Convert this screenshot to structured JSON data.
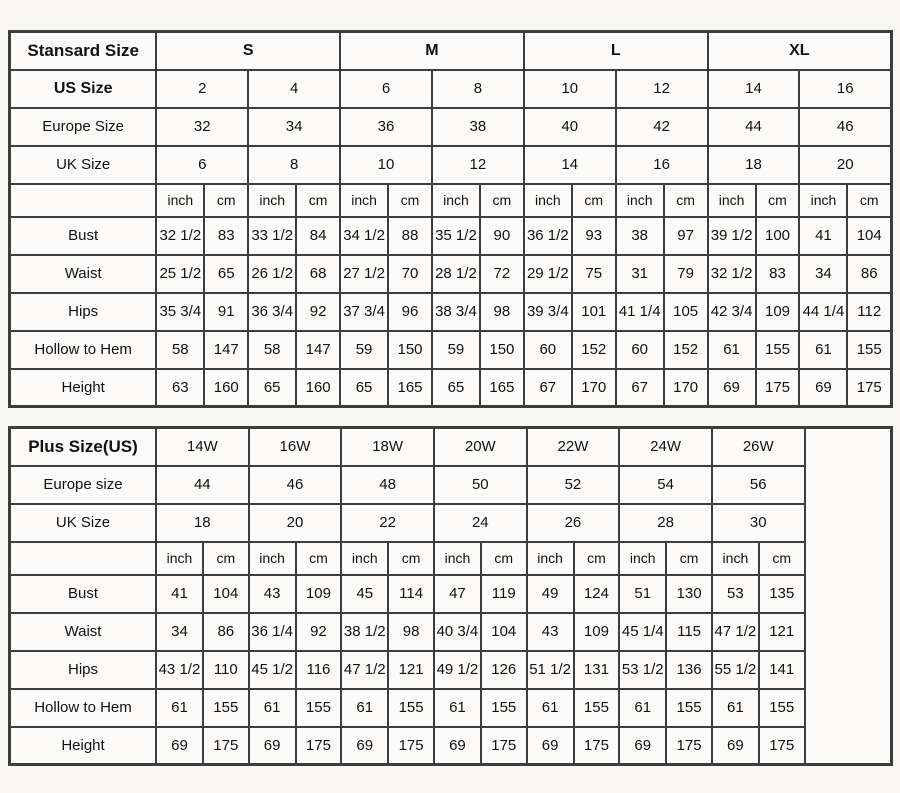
{
  "standard_table": {
    "corner_label": "Stansard Size",
    "groups": [
      "S",
      "M",
      "L",
      "XL"
    ],
    "size_rows": [
      {
        "label": "US Size",
        "bold": true,
        "values": [
          "2",
          "4",
          "6",
          "8",
          "10",
          "12",
          "14",
          "16"
        ]
      },
      {
        "label": "Europe Size",
        "bold": false,
        "values": [
          "32",
          "34",
          "36",
          "38",
          "40",
          "42",
          "44",
          "46"
        ]
      },
      {
        "label": "UK Size",
        "bold": false,
        "values": [
          "6",
          "8",
          "10",
          "12",
          "14",
          "16",
          "18",
          "20"
        ]
      }
    ],
    "units": [
      "inch",
      "cm"
    ],
    "measure_rows": [
      {
        "label": "Bust",
        "values": [
          "32 1/2",
          "83",
          "33 1/2",
          "84",
          "34 1/2",
          "88",
          "35 1/2",
          "90",
          "36 1/2",
          "93",
          "38",
          "97",
          "39 1/2",
          "100",
          "41",
          "104"
        ]
      },
      {
        "label": "Waist",
        "values": [
          "25 1/2",
          "65",
          "26 1/2",
          "68",
          "27 1/2",
          "70",
          "28 1/2",
          "72",
          "29 1/2",
          "75",
          "31",
          "79",
          "32 1/2",
          "83",
          "34",
          "86"
        ]
      },
      {
        "label": "Hips",
        "values": [
          "35 3/4",
          "91",
          "36 3/4",
          "92",
          "37 3/4",
          "96",
          "38 3/4",
          "98",
          "39 3/4",
          "101",
          "41 1/4",
          "105",
          "42 3/4",
          "109",
          "44 1/4",
          "112"
        ]
      },
      {
        "label": "Hollow to Hem",
        "values": [
          "58",
          "147",
          "58",
          "147",
          "59",
          "150",
          "59",
          "150",
          "60",
          "152",
          "60",
          "152",
          "61",
          "155",
          "61",
          "155"
        ]
      },
      {
        "label": "Height",
        "values": [
          "63",
          "160",
          "65",
          "160",
          "65",
          "165",
          "65",
          "165",
          "67",
          "170",
          "67",
          "170",
          "69",
          "175",
          "69",
          "175"
        ]
      }
    ]
  },
  "plus_table": {
    "corner_label": "Plus Size(US)",
    "sizes": [
      "14W",
      "16W",
      "18W",
      "20W",
      "22W",
      "24W",
      "26W"
    ],
    "size_rows": [
      {
        "label": "Europe size",
        "bold": false,
        "values": [
          "44",
          "46",
          "48",
          "50",
          "52",
          "54",
          "56"
        ]
      },
      {
        "label": "UK Size",
        "bold": false,
        "values": [
          "18",
          "20",
          "22",
          "24",
          "26",
          "28",
          "30"
        ]
      }
    ],
    "units": [
      "inch",
      "cm"
    ],
    "measure_rows": [
      {
        "label": "Bust",
        "values": [
          "41",
          "104",
          "43",
          "109",
          "45",
          "114",
          "47",
          "119",
          "49",
          "124",
          "51",
          "130",
          "53",
          "135"
        ]
      },
      {
        "label": "Waist",
        "values": [
          "34",
          "86",
          "36 1/4",
          "92",
          "38 1/2",
          "98",
          "40 3/4",
          "104",
          "43",
          "109",
          "45 1/4",
          "115",
          "47 1/2",
          "121"
        ]
      },
      {
        "label": "Hips",
        "values": [
          "43 1/2",
          "110",
          "45 1/2",
          "116",
          "47 1/2",
          "121",
          "49 1/2",
          "126",
          "51 1/2",
          "131",
          "53 1/2",
          "136",
          "55 1/2",
          "141"
        ]
      },
      {
        "label": "Hollow to Hem",
        "values": [
          "61",
          "155",
          "61",
          "155",
          "61",
          "155",
          "61",
          "155",
          "61",
          "155",
          "61",
          "155",
          "61",
          "155"
        ]
      },
      {
        "label": "Height",
        "values": [
          "69",
          "175",
          "69",
          "175",
          "69",
          "175",
          "69",
          "175",
          "69",
          "175",
          "69",
          "175",
          "69",
          "175"
        ]
      }
    ]
  }
}
